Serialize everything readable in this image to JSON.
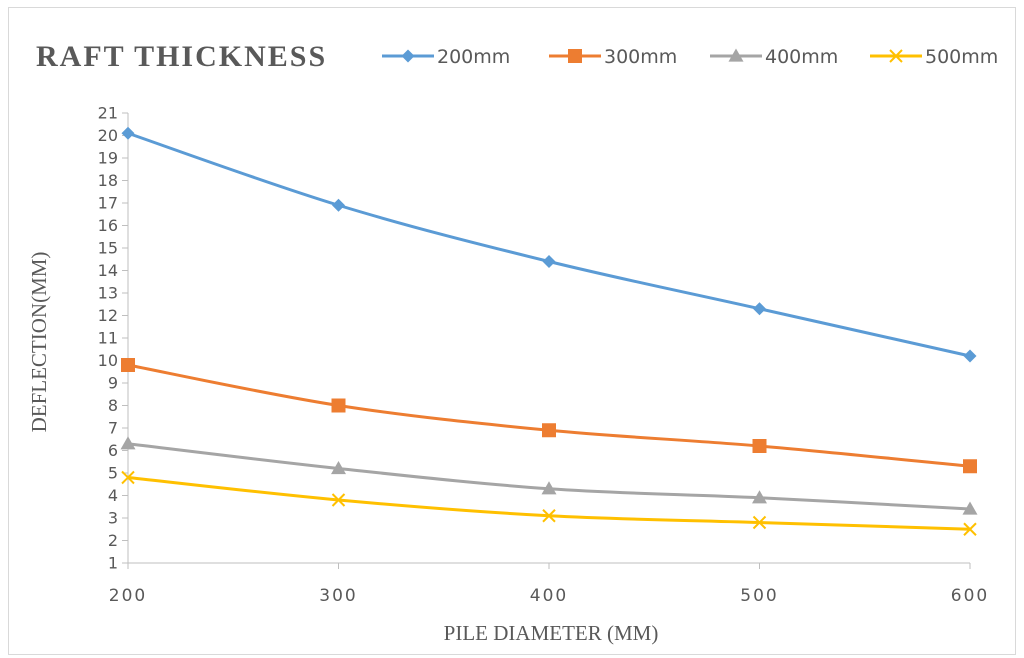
{
  "chart_data": {
    "type": "line",
    "title": "RAFT THICKNESS",
    "xlabel": "PILE DIAMETER (MM)",
    "ylabel": "DEFLECTION(MM)",
    "x": [
      200,
      300,
      400,
      500,
      600
    ],
    "xlim": [
      200,
      600
    ],
    "ylim": [
      1,
      21
    ],
    "yticks": [
      1,
      2,
      3,
      4,
      5,
      6,
      7,
      8,
      9,
      10,
      11,
      12,
      13,
      14,
      15,
      16,
      17,
      18,
      19,
      20,
      21
    ],
    "grid": false,
    "legend_position": "top",
    "series": [
      {
        "name": "200mm",
        "color": "#5b9bd5",
        "marker": "diamond",
        "values": [
          20.1,
          16.9,
          14.4,
          12.3,
          10.2
        ]
      },
      {
        "name": "300mm",
        "color": "#ed7d31",
        "marker": "square",
        "values": [
          9.8,
          8.0,
          6.9,
          6.2,
          5.3
        ]
      },
      {
        "name": "400mm",
        "color": "#a5a5a5",
        "marker": "triangle",
        "values": [
          6.3,
          5.2,
          4.3,
          3.9,
          3.4
        ]
      },
      {
        "name": "500mm",
        "color": "#ffc000",
        "marker": "x",
        "values": [
          4.8,
          3.8,
          3.1,
          2.8,
          2.5
        ]
      }
    ]
  }
}
